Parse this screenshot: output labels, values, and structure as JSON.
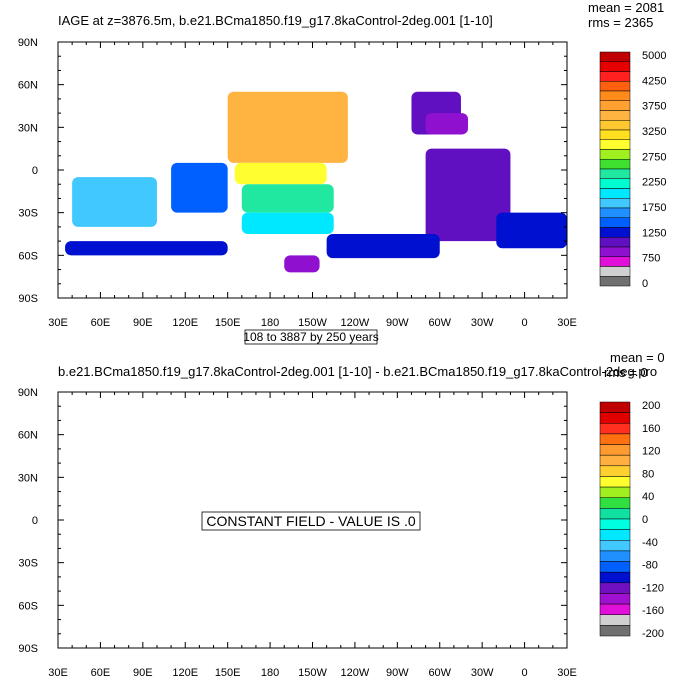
{
  "panels": [
    {
      "title": "IAGE at z=3876.5m, b.e21.BCma1850.f19_g17.8kaControl-2deg.001 [1-10]",
      "stats": {
        "mean": "mean = 2081",
        "rms": "rms = 2365"
      },
      "y_ticks": [
        "90N",
        "60N",
        "30N",
        "0",
        "30S",
        "60S",
        "90S"
      ],
      "x_ticks": [
        "30E",
        "60E",
        "90E",
        "120E",
        "150E",
        "180",
        "150W",
        "120W",
        "90W",
        "60W",
        "30W",
        "0",
        "30E"
      ],
      "contour_info": "108 to 3887 by 250 years",
      "colorbar_labels": [
        "5000",
        "4250",
        "3750",
        "3250",
        "2750",
        "2250",
        "1750",
        "1250",
        "750",
        "0"
      ]
    },
    {
      "title": "b.e21.BCma1850.f19_g17.8kaControl-2deg.001 [1-10] - b.e21.BCma1850.f19_g17.8kaControl-2deg.pro",
      "stats": {
        "mean": "mean = 0",
        "rms": "rms = 0"
      },
      "y_ticks": [
        "90N",
        "60N",
        "30N",
        "0",
        "30S",
        "60S",
        "90S"
      ],
      "x_ticks": [
        "30E",
        "60E",
        "90E",
        "120E",
        "150E",
        "180",
        "150W",
        "120W",
        "90W",
        "60W",
        "30W",
        "0",
        "30E"
      ],
      "message": "CONSTANT FIELD - VALUE IS .0",
      "colorbar_labels": [
        "200",
        "160",
        "120",
        "80",
        "40",
        "0",
        "-40",
        "-80",
        "-120",
        "-160",
        "-200"
      ]
    }
  ],
  "colors": {
    "colorbar_top": [
      "#c00000",
      "#e60000",
      "#ff2020",
      "#ff6010",
      "#ff8c1a",
      "#ffa030",
      "#ffb340",
      "#ffc830",
      "#ffe020",
      "#ffff30",
      "#a0f020",
      "#40e030",
      "#20e8a0",
      "#00ffd0",
      "#00e8ff",
      "#40c8ff",
      "#2090ff",
      "#0060ff",
      "#0010d0",
      "#6010c0",
      "#9010d0",
      "#e010d8",
      "#d0d0d0",
      "#707070"
    ],
    "colorbar_bottom": [
      "#c00000",
      "#e00000",
      "#ff3020",
      "#ff7010",
      "#ff9a30",
      "#ffb040",
      "#ffd030",
      "#ffff30",
      "#a0f020",
      "#30e040",
      "#10e0a0",
      "#00ffe0",
      "#00e8ff",
      "#40c8ff",
      "#2090ff",
      "#0060ff",
      "#0010d0",
      "#7010c0",
      "#a010d0",
      "#e010d8",
      "#d0d0d0",
      "#707070"
    ]
  },
  "chart_data": [
    {
      "type": "heatmap",
      "variable": "IAGE",
      "depth": "3876.5m",
      "title": "IAGE at z=3876.5m, b.e21.BCma1850.f19_g17.8kaControl-2deg.001 [1-10]",
      "mean": 2081,
      "rms": 2365,
      "x_ticks": [
        "30E",
        "60E",
        "90E",
        "120E",
        "150E",
        "180",
        "150W",
        "120W",
        "90W",
        "60W",
        "30W",
        "0",
        "30E"
      ],
      "y_ticks": [
        "90N",
        "60N",
        "30N",
        "0",
        "30S",
        "60S",
        "90S"
      ],
      "colorbar_levels": [
        5000,
        4250,
        3750,
        3250,
        2750,
        2250,
        1750,
        1250,
        750,
        0
      ],
      "contour_min": 108,
      "contour_max": 3887,
      "contour_interval": 250,
      "regions": [
        {
          "x": [
            150,
            235
          ],
          "y": [
            55,
            5
          ],
          "value": 3600
        },
        {
          "x": [
            155,
            220
          ],
          "y": [
            5,
            -10
          ],
          "value": 3100
        },
        {
          "x": [
            160,
            225
          ],
          "y": [
            -10,
            -30
          ],
          "value": 2400
        },
        {
          "x": [
            160,
            225
          ],
          "y": [
            -30,
            -45
          ],
          "value": 1900
        },
        {
          "x": [
            40,
            100
          ],
          "y": [
            -5,
            -40
          ],
          "value": 1700
        },
        {
          "x": [
            110,
            150
          ],
          "y": [
            5,
            -30
          ],
          "value": 1400
        },
        {
          "x": [
            290,
            350
          ],
          "y": [
            15,
            -50
          ],
          "value": 850
        },
        {
          "x": [
            280,
            315
          ],
          "y": [
            55,
            25
          ],
          "value": 850
        },
        {
          "x": [
            290,
            320
          ],
          "y": [
            40,
            25
          ],
          "value": 700
        },
        {
          "x": [
            35,
            150
          ],
          "y": [
            -50,
            -60
          ],
          "value": 1100
        },
        {
          "x": [
            190,
            215
          ],
          "y": [
            -60,
            -72
          ],
          "value": 700
        },
        {
          "x": [
            220,
            300
          ],
          "y": [
            -45,
            -62
          ],
          "value": 1100
        },
        {
          "x": [
            340,
            390
          ],
          "y": [
            -30,
            -55
          ],
          "value": 1000
        }
      ]
    },
    {
      "type": "heatmap",
      "title": "b.e21.BCma1850.f19_g17.8kaControl-2deg.001 [1-10] - b.e21.BCma1850.f19_g17.8kaControl-2deg.pro",
      "mean": 0,
      "rms": 0,
      "constant_value": 0.0,
      "x_ticks": [
        "30E",
        "60E",
        "90E",
        "120E",
        "150E",
        "180",
        "150W",
        "120W",
        "90W",
        "60W",
        "30W",
        "0",
        "30E"
      ],
      "y_ticks": [
        "90N",
        "60N",
        "30N",
        "0",
        "30S",
        "60S",
        "90S"
      ],
      "colorbar_levels": [
        200,
        160,
        120,
        80,
        40,
        0,
        -40,
        -80,
        -120,
        -160,
        -200
      ]
    }
  ]
}
